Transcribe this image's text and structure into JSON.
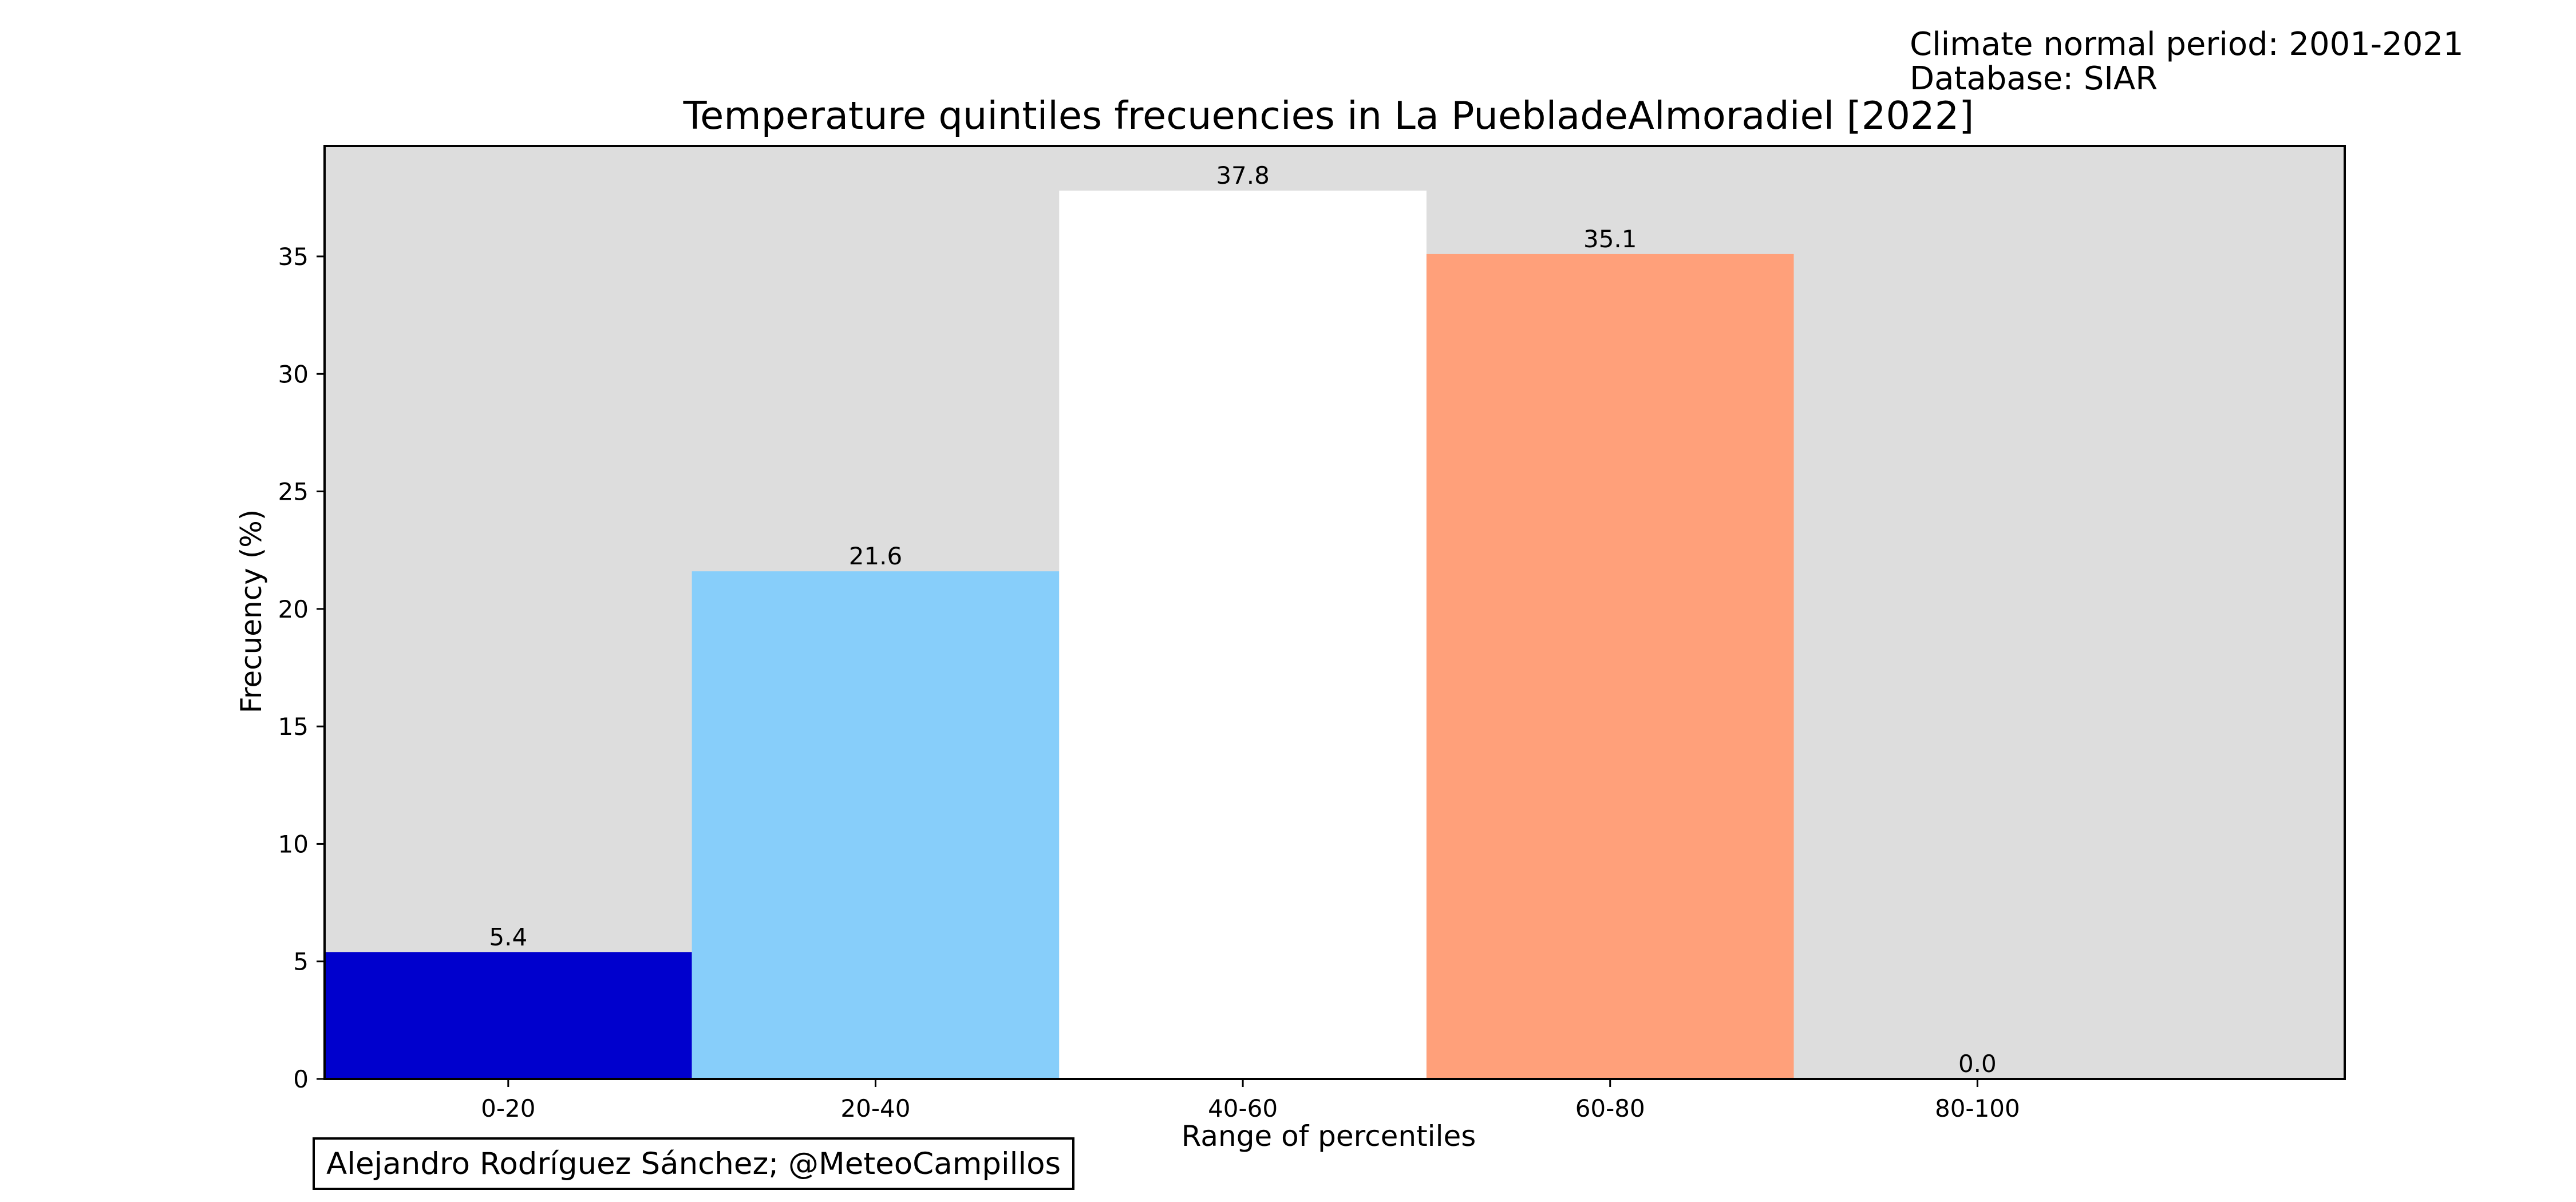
{
  "header": {
    "normal_period": "Climate normal period: 2001-2021",
    "database": "Database: SIAR"
  },
  "credit": "Alejandro Rodríguez Sánchez; @MeteoCampillos",
  "chart_data": {
    "type": "bar",
    "title": "Temperature quintiles frecuencies in La PuebladeAlmoradiel [2022]",
    "xlabel": "Range of percentiles",
    "ylabel": "Frecuency (%)",
    "categories": [
      "0-20",
      "20-40",
      "40-60",
      "60-80",
      "80-100"
    ],
    "values": [
      5.4,
      21.6,
      37.8,
      35.1,
      0.0
    ],
    "value_labels": [
      "5.4",
      "21.6",
      "37.8",
      "35.1",
      "0.0"
    ],
    "colors": [
      "#0000cd",
      "#87cefa",
      "#ffffff",
      "#ffa07a",
      "#ff0000"
    ],
    "yticks": [
      0,
      5,
      10,
      15,
      20,
      25,
      30,
      35
    ],
    "ylim": [
      0,
      39.7
    ],
    "xlim": [
      -0.5,
      5
    ],
    "plot_background": "#dddddd",
    "grid": false,
    "legend": "none"
  }
}
